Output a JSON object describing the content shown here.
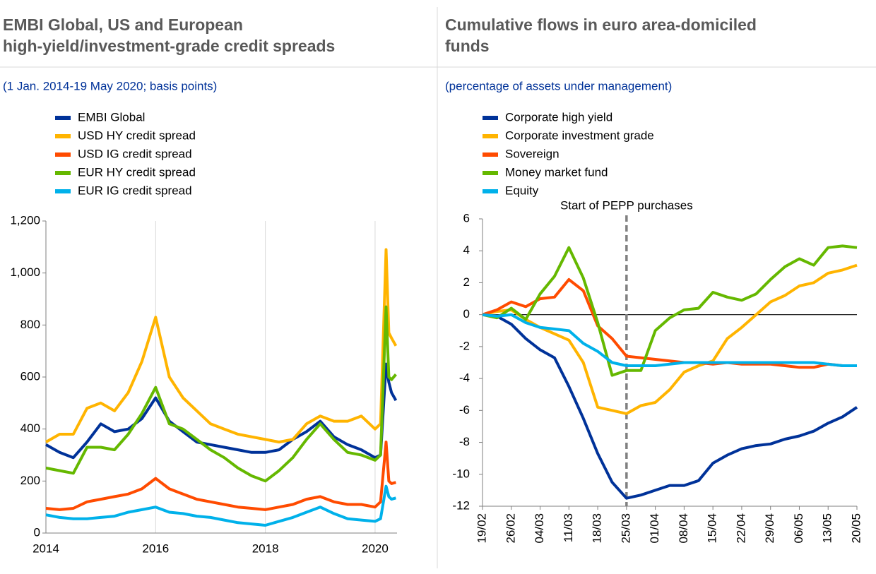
{
  "chart_data": [
    {
      "type": "line",
      "title": [
        "EMBI Global, US and European",
        "high-yield/investment-grade credit spreads"
      ],
      "subtitle": "(1 Jan. 2014-19 May 2020; basis points)",
      "x": [
        2014,
        2014.25,
        2014.5,
        2014.75,
        2015,
        2015.25,
        2015.5,
        2015.75,
        2016,
        2016.25,
        2016.5,
        2016.75,
        2017,
        2017.25,
        2017.5,
        2017.75,
        2018,
        2018.25,
        2018.5,
        2018.75,
        2019,
        2019.25,
        2019.5,
        2019.75,
        2020,
        2020.1,
        2020.2,
        2020.25,
        2020.3,
        2020.38
      ],
      "xlim": [
        2014,
        2020.4
      ],
      "xticks": [
        2014,
        2016,
        2018,
        2020
      ],
      "ylim": [
        0,
        1200
      ],
      "yticks": [
        0,
        200,
        400,
        600,
        800,
        {
          "value": 1000,
          "label": "1,000"
        },
        {
          "value": 1200,
          "label": "1,200"
        }
      ],
      "grid": "x",
      "series": [
        {
          "name": "EMBI Global",
          "color": "#003299",
          "values": [
            340,
            310,
            290,
            350,
            420,
            390,
            400,
            440,
            520,
            430,
            390,
            350,
            340,
            330,
            320,
            310,
            310,
            320,
            360,
            390,
            430,
            370,
            340,
            320,
            290,
            300,
            650,
            580,
            540,
            510
          ]
        },
        {
          "name": "USD HY credit spread",
          "color": "#ffb400",
          "values": [
            350,
            380,
            380,
            480,
            500,
            470,
            540,
            660,
            830,
            600,
            520,
            470,
            420,
            400,
            380,
            370,
            360,
            350,
            360,
            420,
            450,
            430,
            430,
            450,
            400,
            420,
            1090,
            770,
            750,
            720
          ]
        },
        {
          "name": "USD IG credit spread",
          "color": "#ff4b00",
          "values": [
            95,
            90,
            95,
            120,
            130,
            140,
            150,
            170,
            210,
            170,
            150,
            130,
            120,
            110,
            100,
            95,
            90,
            100,
            110,
            130,
            140,
            120,
            110,
            110,
            100,
            120,
            350,
            200,
            190,
            195
          ]
        },
        {
          "name": "EUR HY credit spread",
          "color": "#65b800",
          "values": [
            250,
            240,
            230,
            330,
            330,
            320,
            380,
            460,
            560,
            420,
            400,
            360,
            320,
            290,
            250,
            220,
            200,
            240,
            290,
            360,
            420,
            360,
            310,
            300,
            280,
            300,
            870,
            600,
            590,
            610
          ]
        },
        {
          "name": "EUR IG credit spread",
          "color": "#00b1ea",
          "values": [
            70,
            60,
            55,
            55,
            60,
            65,
            80,
            90,
            100,
            80,
            75,
            65,
            60,
            50,
            40,
            35,
            30,
            45,
            60,
            80,
            100,
            75,
            55,
            50,
            45,
            55,
            180,
            140,
            130,
            135
          ]
        }
      ]
    },
    {
      "type": "line",
      "title": [
        "Cumulative flows in euro area-domiciled",
        "funds"
      ],
      "subtitle": "(percentage of assets under management)",
      "categories": [
        "19/02",
        null,
        "26/02",
        null,
        "04/03",
        null,
        "11/03",
        null,
        "18/03",
        null,
        "25/03",
        null,
        "01/04",
        null,
        "08/04",
        null,
        "15/04",
        null,
        "22/04",
        null,
        "29/04",
        null,
        "06/05",
        null,
        "13/05",
        null,
        "20/05"
      ],
      "ylim": [
        -12,
        6
      ],
      "yticks": [
        -12,
        -10,
        -8,
        -6,
        -4,
        -2,
        0,
        2,
        4,
        6
      ],
      "grid": false,
      "zero_line": true,
      "annotation": {
        "text": "Start of PEPP purchases",
        "x": "25/03"
      },
      "series": [
        {
          "name": "Corporate high yield",
          "color": "#003299",
          "values": [
            0,
            -0.1,
            -0.6,
            -1.5,
            -2.2,
            -2.7,
            -4.5,
            -6.5,
            -8.7,
            -10.5,
            -11.5,
            -11.3,
            -11.0,
            -10.7,
            -10.7,
            -10.4,
            -9.3,
            -8.8,
            -8.4,
            -8.2,
            -8.1,
            -7.8,
            -7.6,
            -7.3,
            -6.8,
            -6.4,
            -5.8
          ]
        },
        {
          "name": "Corporate investment grade",
          "color": "#ffb400",
          "values": [
            0,
            0.2,
            0.3,
            -0.3,
            -0.8,
            -1.2,
            -1.6,
            -3,
            -5.8,
            -6,
            -6.2,
            -5.7,
            -5.5,
            -4.7,
            -3.6,
            -3.2,
            -2.9,
            -1.5,
            -0.8,
            0,
            0.8,
            1.2,
            1.8,
            2.0,
            2.6,
            2.8,
            3.1
          ]
        },
        {
          "name": "Sovereign",
          "color": "#ff4b00",
          "values": [
            0,
            0.3,
            0.8,
            0.5,
            1.0,
            1.1,
            2.2,
            1.5,
            -0.7,
            -1.5,
            -2.6,
            -2.7,
            -2.8,
            -2.9,
            -3.0,
            -3.0,
            -3.1,
            -3.0,
            -3.1,
            -3.1,
            -3.1,
            -3.2,
            -3.3,
            -3.3,
            -3.1,
            -3.2,
            -3.2
          ]
        },
        {
          "name": "Money market fund",
          "color": "#65b800",
          "values": [
            0,
            -0.2,
            0.4,
            -0.3,
            1.3,
            2.4,
            4.2,
            2.3,
            -0.5,
            -3.8,
            -3.5,
            -3.5,
            -1.0,
            -0.2,
            0.3,
            0.4,
            1.4,
            1.1,
            0.9,
            1.3,
            2.2,
            3.0,
            3.5,
            3.1,
            4.2,
            4.3,
            4.2
          ]
        },
        {
          "name": "Equity",
          "color": "#00b1ea",
          "values": [
            0,
            -0.1,
            0,
            -0.5,
            -0.8,
            -0.9,
            -1.0,
            -1.8,
            -2.3,
            -3.0,
            -3.2,
            -3.2,
            -3.2,
            -3.1,
            -3.0,
            -3.0,
            -3.0,
            -3.0,
            -3.0,
            -3.0,
            -3.0,
            -3.0,
            -3.0,
            -3.0,
            -3.1,
            -3.2,
            -3.2
          ]
        }
      ]
    }
  ]
}
